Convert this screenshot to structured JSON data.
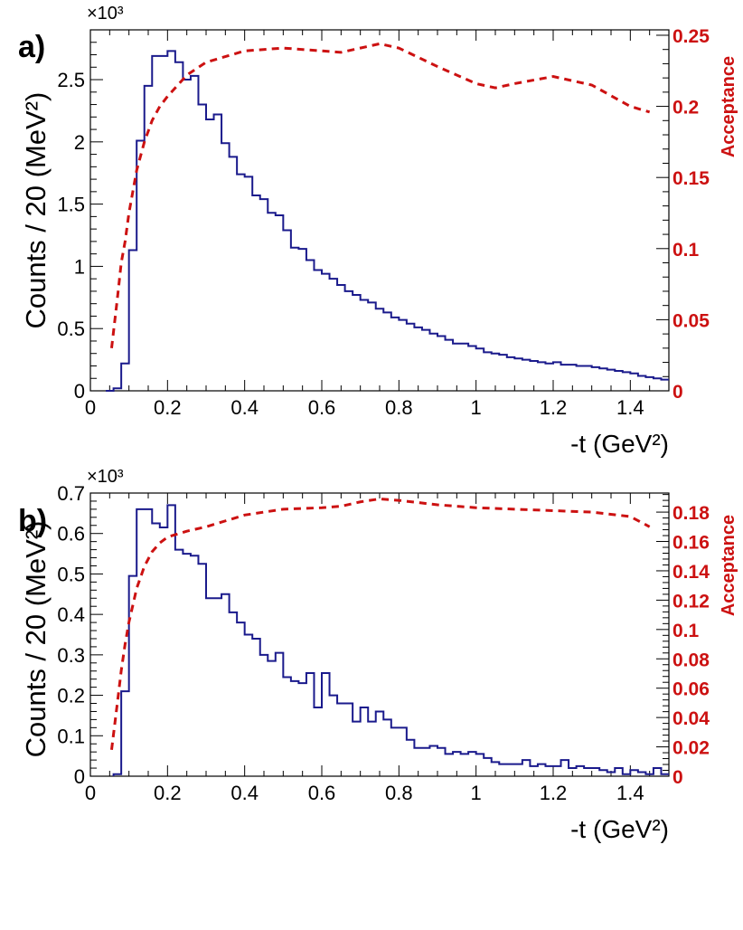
{
  "chart_data": [
    {
      "type": "line",
      "panel_label": "a)",
      "exponent_label": "×10³",
      "xlabel": "-t (GeV²)",
      "ylabel": "Counts / 20 (MeV²)",
      "ylabel_right": "Acceptance",
      "xlim": [
        0,
        1.5
      ],
      "ylim": [
        0,
        2.9
      ],
      "ylim_right": [
        0,
        0.2538
      ],
      "x_ticks": [
        "0",
        "0.2",
        "0.4",
        "0.6",
        "0.8",
        "1",
        "1.2",
        "1.4"
      ],
      "y_ticks": [
        "0",
        "0.5",
        "1",
        "1.5",
        "2",
        "2.5"
      ],
      "y_right_ticks": [
        "0",
        "0.05",
        "0.1",
        "0.15",
        "0.2",
        "0.25"
      ],
      "colors": {
        "histogram": "#1a1a8c",
        "acceptance": "#cc1111"
      },
      "series": [
        {
          "kind": "histogram",
          "bin_width": 0.02,
          "x_start": 0.04,
          "values": [
            0,
            0.02,
            0.22,
            1.13,
            2.01,
            2.45,
            2.69,
            2.69,
            2.73,
            2.64,
            2.5,
            2.53,
            2.3,
            2.18,
            2.22,
            1.99,
            1.88,
            1.74,
            1.72,
            1.57,
            1.54,
            1.43,
            1.41,
            1.29,
            1.15,
            1.14,
            1.05,
            0.97,
            0.94,
            0.9,
            0.85,
            0.8,
            0.77,
            0.73,
            0.71,
            0.66,
            0.63,
            0.59,
            0.57,
            0.54,
            0.51,
            0.49,
            0.46,
            0.44,
            0.41,
            0.38,
            0.38,
            0.36,
            0.34,
            0.31,
            0.3,
            0.29,
            0.27,
            0.26,
            0.25,
            0.24,
            0.23,
            0.22,
            0.23,
            0.21,
            0.21,
            0.2,
            0.2,
            0.19,
            0.18,
            0.17,
            0.16,
            0.15,
            0.14,
            0.12,
            0.11,
            0.1,
            0.09
          ]
        },
        {
          "kind": "acceptance",
          "x": [
            0.055,
            0.07,
            0.08,
            0.09,
            0.1,
            0.12,
            0.14,
            0.16,
            0.18,
            0.2,
            0.25,
            0.3,
            0.4,
            0.5,
            0.6,
            0.65,
            0.7,
            0.75,
            0.8,
            0.9,
            1.0,
            1.05,
            1.1,
            1.2,
            1.3,
            1.4,
            1.45
          ],
          "values": [
            0.03,
            0.065,
            0.09,
            0.105,
            0.125,
            0.155,
            0.175,
            0.19,
            0.2,
            0.207,
            0.222,
            0.231,
            0.239,
            0.241,
            0.239,
            0.238,
            0.241,
            0.244,
            0.241,
            0.228,
            0.216,
            0.213,
            0.216,
            0.221,
            0.215,
            0.2,
            0.196
          ]
        }
      ]
    },
    {
      "type": "line",
      "panel_label": "b)",
      "exponent_label": "×10³",
      "xlabel": "-t (GeV²)",
      "ylabel": "Counts / 20 (MeV²)",
      "ylabel_right": "Acceptance",
      "xlim": [
        0,
        1.5
      ],
      "ylim": [
        0,
        0.7
      ],
      "ylim_right": [
        0,
        0.193
      ],
      "x_ticks": [
        "0",
        "0.2",
        "0.4",
        "0.6",
        "0.8",
        "1",
        "1.2",
        "1.4"
      ],
      "y_ticks": [
        "0",
        "0.1",
        "0.2",
        "0.3",
        "0.4",
        "0.5",
        "0.6",
        "0.7"
      ],
      "y_right_ticks": [
        "0",
        "0.02",
        "0.04",
        "0.06",
        "0.08",
        "0.1",
        "0.12",
        "0.14",
        "0.16",
        "0.18"
      ],
      "colors": {
        "histogram": "#1a1a8c",
        "acceptance": "#cc1111"
      },
      "series": [
        {
          "kind": "histogram",
          "bin_width": 0.02,
          "x_start": 0.06,
          "values": [
            0.005,
            0.21,
            0.495,
            0.66,
            0.66,
            0.625,
            0.615,
            0.67,
            0.56,
            0.55,
            0.545,
            0.525,
            0.44,
            0.44,
            0.45,
            0.405,
            0.38,
            0.35,
            0.34,
            0.3,
            0.285,
            0.305,
            0.245,
            0.235,
            0.23,
            0.255,
            0.17,
            0.255,
            0.2,
            0.18,
            0.18,
            0.135,
            0.17,
            0.135,
            0.16,
            0.14,
            0.12,
            0.12,
            0.09,
            0.07,
            0.07,
            0.075,
            0.07,
            0.055,
            0.06,
            0.055,
            0.06,
            0.055,
            0.045,
            0.035,
            0.03,
            0.03,
            0.03,
            0.04,
            0.025,
            0.03,
            0.025,
            0.025,
            0.04,
            0.02,
            0.025,
            0.02,
            0.02,
            0.015,
            0.01,
            0.02,
            0.005,
            0.015,
            0.01,
            0.005,
            0.02,
            0.005
          ]
        },
        {
          "kind": "acceptance",
          "x": [
            0.055,
            0.07,
            0.08,
            0.09,
            0.1,
            0.12,
            0.14,
            0.16,
            0.18,
            0.2,
            0.25,
            0.3,
            0.4,
            0.5,
            0.6,
            0.65,
            0.7,
            0.75,
            0.8,
            0.9,
            1.0,
            1.1,
            1.2,
            1.3,
            1.4,
            1.45
          ],
          "values": [
            0.018,
            0.05,
            0.072,
            0.09,
            0.105,
            0.128,
            0.143,
            0.153,
            0.159,
            0.163,
            0.167,
            0.17,
            0.178,
            0.182,
            0.183,
            0.184,
            0.187,
            0.189,
            0.188,
            0.185,
            0.183,
            0.182,
            0.181,
            0.18,
            0.177,
            0.17
          ]
        }
      ]
    }
  ]
}
